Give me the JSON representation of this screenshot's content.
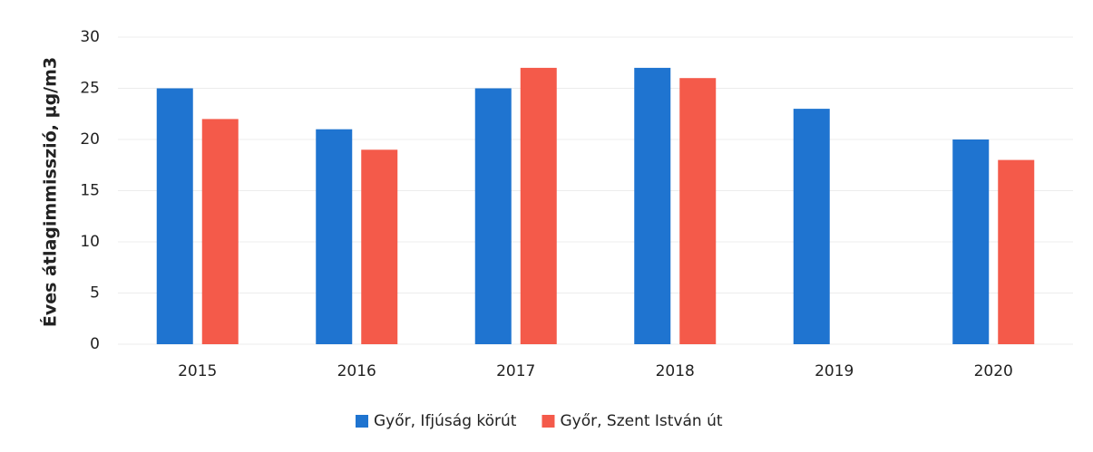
{
  "chart_data": {
    "type": "bar",
    "y_label": "Éves átlagimmisszió, µg/m3",
    "categories": [
      "2015",
      "2016",
      "2017",
      "2018",
      "2019",
      "2020"
    ],
    "series": [
      {
        "name": "Győr, Ifjúság körút",
        "color": "#1f74d0",
        "values": [
          25,
          21,
          25,
          27,
          23,
          20
        ]
      },
      {
        "name": "Győr, Szent István út",
        "color": "#f45a4a",
        "values": [
          22,
          19,
          27,
          26,
          null,
          18
        ]
      }
    ],
    "ylim": [
      0,
      30
    ],
    "yticks": [
      0,
      5,
      10,
      15,
      20,
      25,
      30
    ],
    "grid": true,
    "legend": "bottom"
  }
}
